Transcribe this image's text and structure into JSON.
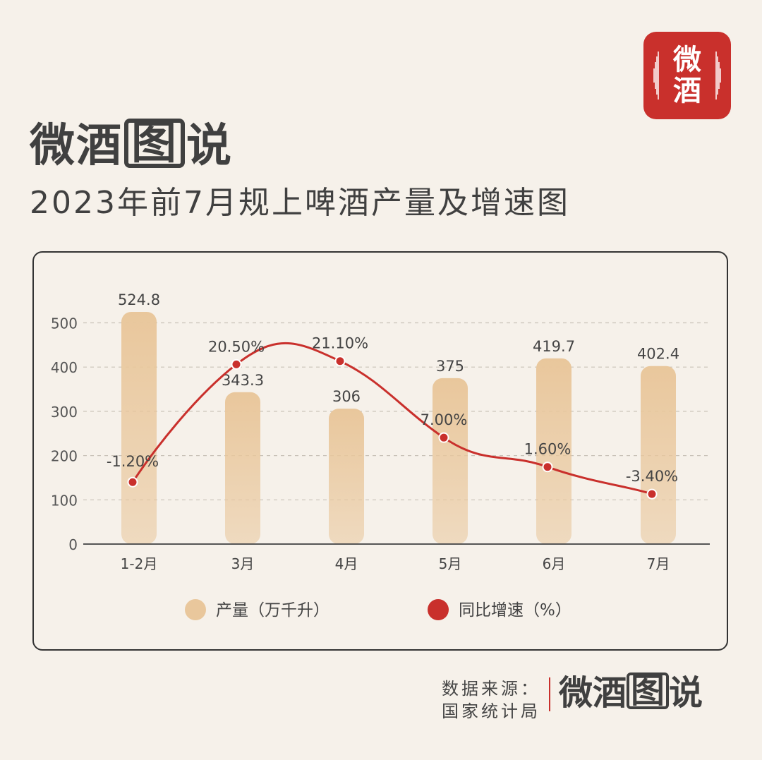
{
  "brand": {
    "logo_text": "微酒",
    "name_part1": "微酒",
    "name_part2": "图",
    "name_part3": "说"
  },
  "header": {
    "subtitle": "2023年前7月规上啤酒产量及增速图"
  },
  "source": {
    "label": "数据来源：",
    "value": "国家统计局"
  },
  "colors": {
    "bar": "#e9c79c",
    "line": "#c9302c",
    "accent": "#c9302c",
    "text": "#3a3a3a"
  },
  "chart_data": {
    "type": "bar",
    "categories": [
      "1-2月",
      "3月",
      "4月",
      "5月",
      "6月",
      "7月"
    ],
    "series": [
      {
        "name": "产量（万千升）",
        "type": "bar",
        "axis": "left",
        "values": [
          524.8,
          343.3,
          306,
          375,
          419.7,
          402.4
        ],
        "labels": [
          "524.8",
          "343.3",
          "306",
          "375",
          "419.7",
          "402.4"
        ]
      },
      {
        "name": "同比增速（%）",
        "type": "line",
        "axis": "right",
        "values": [
          -1.2,
          20.5,
          21.1,
          7.0,
          1.6,
          -3.4
        ],
        "labels": [
          "-1.20%",
          "20.50%",
          "21.10%",
          "7.00%",
          "1.60%",
          "-3.40%"
        ]
      }
    ],
    "y_ticks": [
      "0",
      "100",
      "200",
      "300",
      "400",
      "500"
    ],
    "ylim": [
      0,
      500
    ],
    "grid": true,
    "legend": "bottom"
  }
}
